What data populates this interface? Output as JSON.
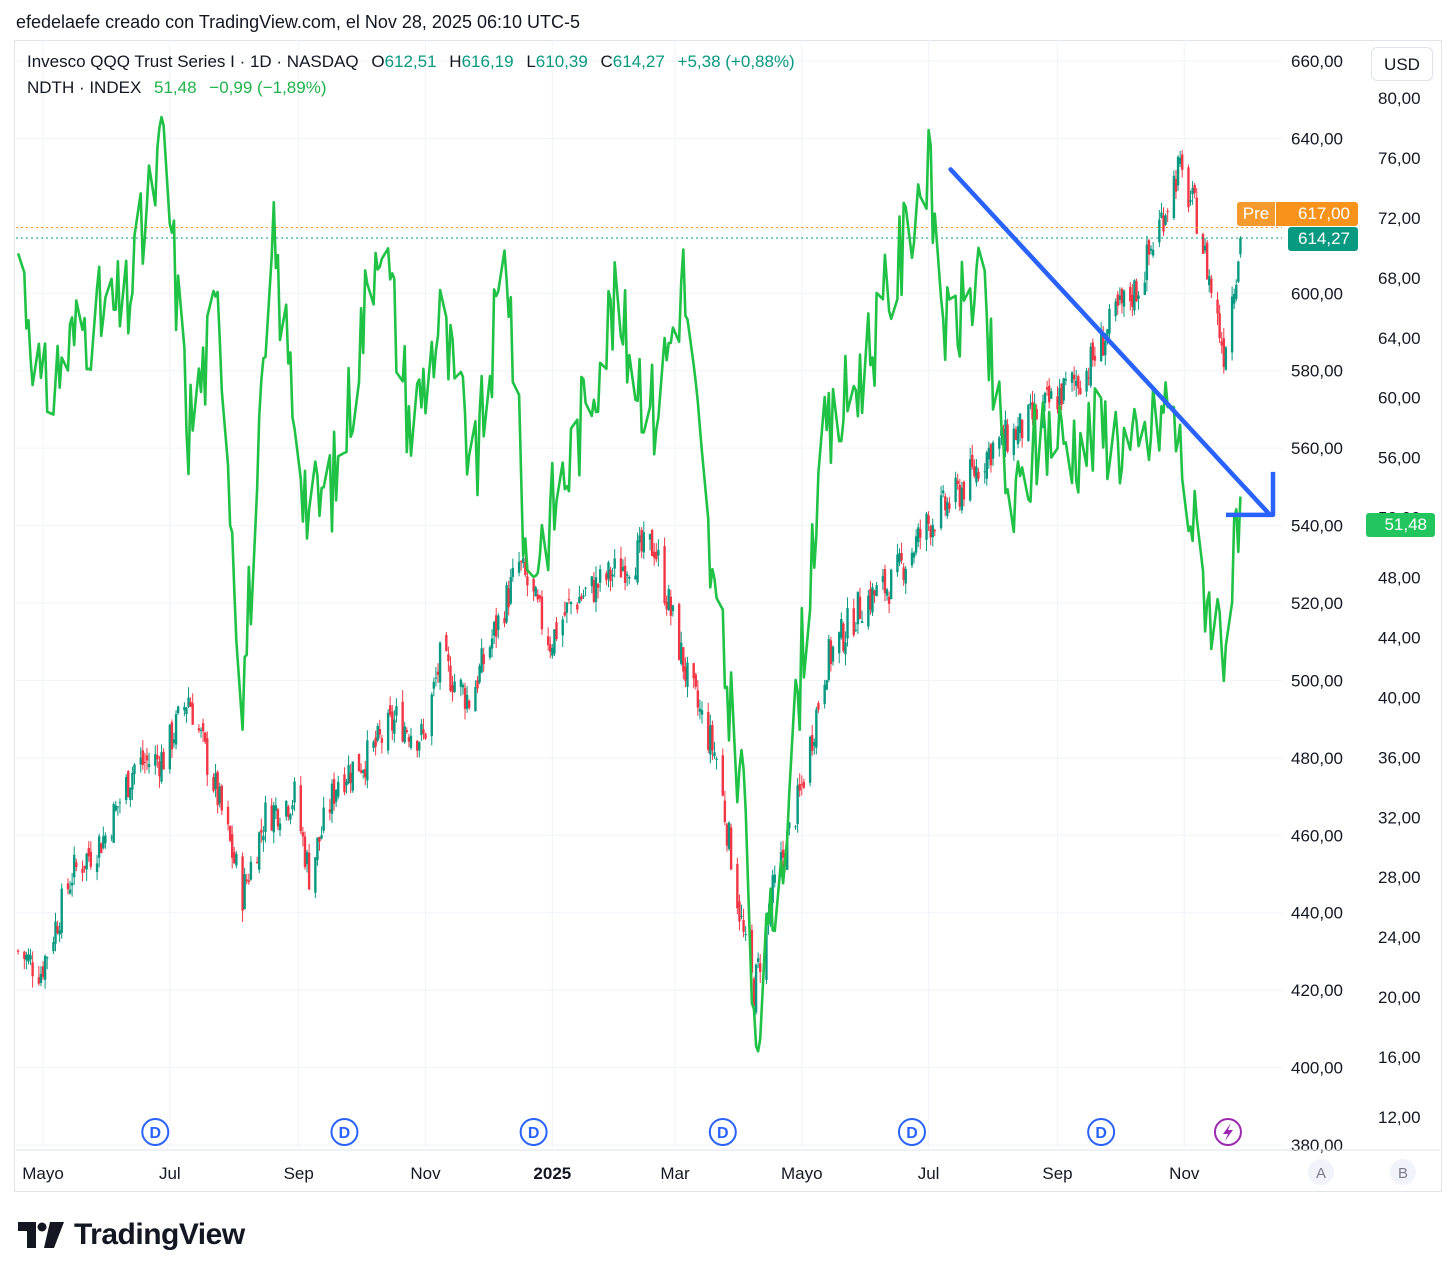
{
  "header": {
    "attribution": "efedelaefe creado con TradingView.com, el Nov 28, 2025 06:10 UTC-5"
  },
  "legend": {
    "qqq": {
      "name": "Invesco QQQ Trust Series I · 1D · NASDAQ",
      "o_label": "O",
      "o": "612,51",
      "h_label": "H",
      "h": "616,19",
      "l_label": "L",
      "l": "610,39",
      "c_label": "C",
      "c": "614,27",
      "change": "+5,38 (+0,88%)"
    },
    "ndth": {
      "name": "NDTH · INDEX",
      "value": "51,48",
      "change": "−0,99 (−1,89%)"
    }
  },
  "toolbar": {
    "currency": "USD",
    "scale_a": "A",
    "scale_b": "B"
  },
  "tags": {
    "pre_label": "Pre",
    "pre_price": "617,00",
    "last_price": "614,27",
    "ndth_last": "51,48",
    "pre_color": "#f7931a",
    "last_color": "#089981",
    "ndth_color": "#22c55e"
  },
  "footer": {
    "brand": "TradingView"
  },
  "colors": {
    "up": "#089981",
    "down": "#f23645",
    "breadth": "#1fc245",
    "arrow": "#2962ff",
    "dividend": "#2962ff",
    "earnings": "#9c27b0"
  },
  "chart_data": {
    "type": "line",
    "title": "",
    "x_ticks": [
      "Mayo",
      "Jul",
      "Sep",
      "Nov",
      "2025",
      "Mar",
      "Mayo",
      "Jul",
      "Sep",
      "Nov"
    ],
    "y_left_ticks": [
      "660,00",
      "640,00",
      "600,00",
      "580,00",
      "560,00",
      "540,00",
      "520,00",
      "500,00",
      "480,00",
      "460,00",
      "440,00",
      "420,00",
      "400,00",
      "380,00"
    ],
    "y_right_ticks": [
      "80,00",
      "76,00",
      "72,00",
      "68,00",
      "64,00",
      "60,00",
      "56,00",
      "52,00",
      "48,00",
      "44,00",
      "40,00",
      "36,00",
      "32,00",
      "28,00",
      "24,00",
      "20,00",
      "16,00",
      "12,00"
    ],
    "price_range": [
      380,
      660
    ],
    "breadth_range": [
      12,
      80
    ],
    "series": [
      {
        "name": "Invesco QQQ Trust Series I",
        "type": "candlestick-close",
        "x": [
          "2024-04-19",
          "2024-04-30",
          "2024-05-15",
          "2024-05-31",
          "2024-06-14",
          "2024-06-28",
          "2024-07-10",
          "2024-07-24",
          "2024-08-05",
          "2024-08-16",
          "2024-08-30",
          "2024-09-06",
          "2024-09-20",
          "2024-10-04",
          "2024-10-18",
          "2024-10-31",
          "2024-11-08",
          "2024-11-22",
          "2024-12-06",
          "2024-12-16",
          "2024-12-31",
          "2025-01-10",
          "2025-01-24",
          "2025-02-07",
          "2025-02-19",
          "2025-03-07",
          "2025-03-21",
          "2025-04-04",
          "2025-04-08",
          "2025-04-17",
          "2025-04-30",
          "2025-05-13",
          "2025-05-30",
          "2025-06-13",
          "2025-06-30",
          "2025-07-15",
          "2025-07-31",
          "2025-08-15",
          "2025-08-29",
          "2025-09-15",
          "2025-09-30",
          "2025-10-10",
          "2025-10-29",
          "2025-11-07",
          "2025-11-20",
          "2025-11-28"
        ],
        "values": [
          430,
          425,
          450,
          460,
          478,
          480,
          496,
          470,
          445,
          465,
          470,
          450,
          475,
          480,
          490,
          485,
          505,
          495,
          515,
          530,
          510,
          520,
          525,
          531,
          535,
          500,
          480,
          430,
          420,
          445,
          470,
          505,
          520,
          525,
          540,
          548,
          560,
          565,
          572,
          580,
          595,
          602,
          632,
          620,
          585,
          614.27
        ]
      },
      {
        "name": "NDTH · INDEX",
        "type": "line",
        "x": [
          "2024-04-19",
          "2024-05-01",
          "2024-05-20",
          "2024-06-10",
          "2024-06-28",
          "2024-07-10",
          "2024-07-25",
          "2024-08-05",
          "2024-08-20",
          "2024-09-06",
          "2024-09-20",
          "2024-10-10",
          "2024-10-25",
          "2024-11-08",
          "2024-11-25",
          "2024-12-10",
          "2024-12-20",
          "2025-01-10",
          "2025-01-30",
          "2025-02-19",
          "2025-03-05",
          "2025-03-20",
          "2025-04-04",
          "2025-04-08",
          "2025-04-25",
          "2025-05-10",
          "2025-05-30",
          "2025-06-15",
          "2025-06-30",
          "2025-07-10",
          "2025-07-25",
          "2025-08-10",
          "2025-08-25",
          "2025-09-10",
          "2025-09-25",
          "2025-10-10",
          "2025-10-25",
          "2025-11-10",
          "2025-11-20",
          "2025-11-28"
        ],
        "values": [
          70,
          60,
          65,
          66,
          77,
          58,
          66,
          40,
          70,
          52,
          55,
          72,
          58,
          65,
          55,
          70,
          48,
          56,
          66,
          59,
          68,
          46,
          33,
          16,
          34,
          56,
          62,
          68,
          76,
          64,
          68,
          52,
          58,
          57,
          58,
          56,
          60,
          48,
          44,
          51.48
        ]
      }
    ],
    "annotation": {
      "type": "arrow",
      "from": [
        "2025-07-01",
        632
      ],
      "to": [
        "2025-11-28",
        542
      ]
    },
    "events": {
      "dividends": 6,
      "earnings": 1
    }
  }
}
